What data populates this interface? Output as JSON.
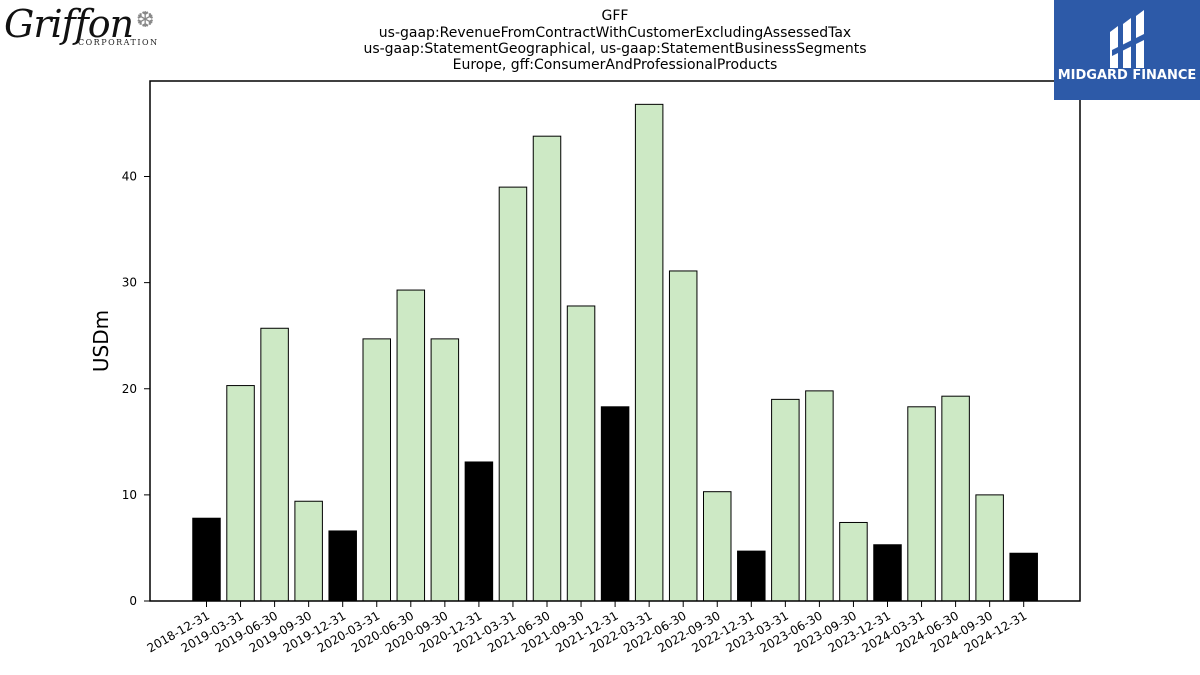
{
  "header": {
    "title_lines": [
      "GFF",
      "us-gaap:RevenueFromContractWithCustomerExcludingAssessedTax",
      "us-gaap:StatementGeographical, us-gaap:StatementBusinessSegments",
      "Europe, gff:ConsumerAndProfessionalProducts"
    ]
  },
  "logos": {
    "griffon_word": "Griffon",
    "griffon_corp": "CORPORATION",
    "griffon_emblem": "griffin-emblem-icon",
    "midgard_text": "MIDGARD FINANCE",
    "midgard_mark": "midgard-mark-icon",
    "midgard_bg": "#2d5aa8"
  },
  "chart_data": {
    "type": "bar",
    "ylabel": "USDm",
    "xlabel": "",
    "ylim": [
      0,
      49
    ],
    "yticks": [
      0,
      10,
      20,
      30,
      40
    ],
    "grid": false,
    "colors": {
      "annual": "#000000",
      "quarterly": "#cde9c5",
      "edge": "#000000"
    },
    "categories": [
      "2018-12-31",
      "2019-03-31",
      "2019-06-30",
      "2019-09-30",
      "2019-12-31",
      "2020-03-31",
      "2020-06-30",
      "2020-09-30",
      "2020-12-31",
      "2021-03-31",
      "2021-06-30",
      "2021-09-30",
      "2021-12-31",
      "2022-03-31",
      "2022-06-30",
      "2022-09-30",
      "2022-12-31",
      "2023-03-31",
      "2023-06-30",
      "2023-09-30",
      "2023-12-31",
      "2024-03-31",
      "2024-06-30",
      "2024-09-30",
      "2024-12-31"
    ],
    "values": [
      7.8,
      20.3,
      25.7,
      9.4,
      6.6,
      24.7,
      29.3,
      24.7,
      13.1,
      39.0,
      43.8,
      27.8,
      18.3,
      46.8,
      31.1,
      10.3,
      4.7,
      19.0,
      19.8,
      7.4,
      5.3,
      18.3,
      19.3,
      10.0,
      4.5
    ],
    "highlight": [
      true,
      false,
      false,
      false,
      true,
      false,
      false,
      false,
      true,
      false,
      false,
      false,
      true,
      false,
      false,
      false,
      true,
      false,
      false,
      false,
      true,
      false,
      false,
      false,
      true
    ]
  }
}
